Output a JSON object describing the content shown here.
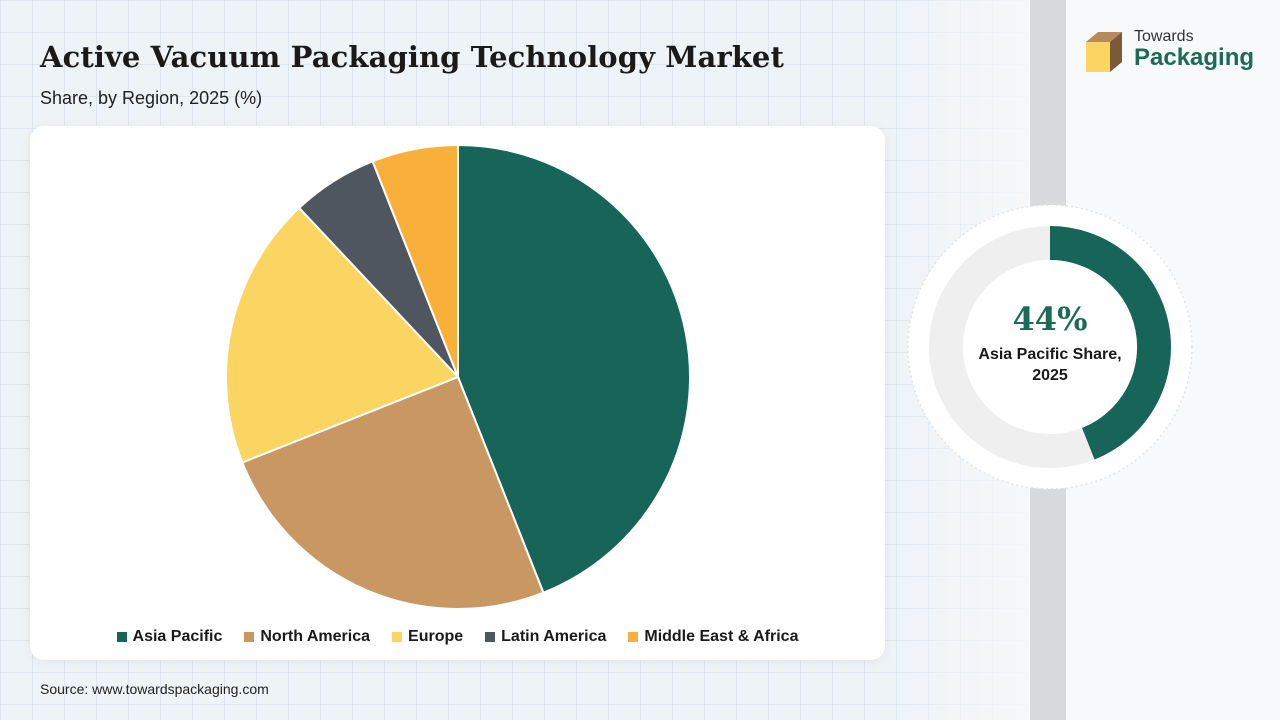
{
  "header": {
    "title": "Active Vacuum Packaging Technology Market",
    "subtitle": "Share, by Region, 2025 (%)"
  },
  "logo": {
    "line1": "Towards",
    "line2": "Packaging",
    "icon": "box-icon"
  },
  "chart_data": {
    "type": "pie",
    "categories": [
      "Asia Pacific",
      "North America",
      "Europe",
      "Latin America",
      "Middle East & Africa"
    ],
    "values": [
      44,
      25,
      19,
      6,
      6
    ],
    "colors": [
      "#166558",
      "#c99762",
      "#fbd561",
      "#4f5660",
      "#f9b03a"
    ],
    "legend_position": "bottom"
  },
  "highlight": {
    "value": "44%",
    "fraction": 0.44,
    "caption": "Asia Pacific Share, 2025",
    "color": "#166558",
    "track_color": "#efefef"
  },
  "footer": {
    "source": "Source: www.towardspackaging.com"
  }
}
